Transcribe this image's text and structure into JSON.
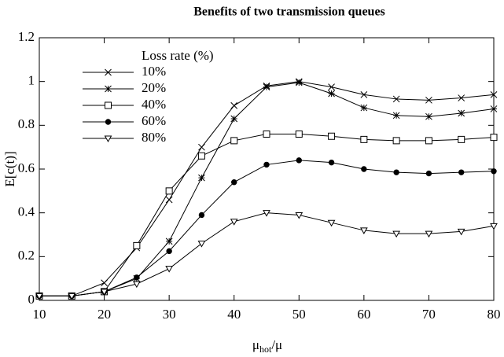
{
  "chart_data": {
    "type": "line",
    "title": "Benefits of two transmission queues",
    "y_label": "E[c(t)]",
    "x_label": {
      "base": "μ",
      "sub": "hot",
      "rest": "/μ"
    },
    "legend_title": "Loss rate (%)",
    "legend": "upper left",
    "x": [
      10,
      15,
      20,
      25,
      30,
      35,
      40,
      45,
      50,
      55,
      60,
      65,
      70,
      75,
      80
    ],
    "series": [
      {
        "name": "10%",
        "color": "#000000",
        "marker": "x",
        "values": [
          0.02,
          0.02,
          0.08,
          0.24,
          0.46,
          0.7,
          0.89,
          0.98,
          1.0,
          0.975,
          0.94,
          0.92,
          0.915,
          0.925,
          0.94
        ]
      },
      {
        "name": "20%",
        "color": "#000000",
        "marker": "star",
        "values": [
          0.02,
          0.02,
          0.04,
          0.1,
          0.27,
          0.56,
          0.83,
          0.975,
          0.995,
          0.945,
          0.88,
          0.845,
          0.84,
          0.855,
          0.875
        ]
      },
      {
        "name": "40%",
        "color": "#000000",
        "marker": "square",
        "values": [
          0.02,
          0.02,
          0.04,
          0.25,
          0.5,
          0.66,
          0.73,
          0.76,
          0.76,
          0.75,
          0.735,
          0.73,
          0.73,
          0.735,
          0.745
        ]
      },
      {
        "name": "60%",
        "color": "#000000",
        "marker": "circle",
        "values": [
          0.02,
          0.02,
          0.04,
          0.105,
          0.225,
          0.39,
          0.54,
          0.62,
          0.64,
          0.63,
          0.6,
          0.585,
          0.58,
          0.585,
          0.59
        ]
      },
      {
        "name": "80%",
        "color": "#000000",
        "marker": "triangle-down",
        "values": [
          0.02,
          0.02,
          0.04,
          0.075,
          0.145,
          0.26,
          0.36,
          0.4,
          0.39,
          0.355,
          0.32,
          0.305,
          0.305,
          0.315,
          0.34
        ]
      }
    ],
    "xlim": [
      10,
      80
    ],
    "xticks": [
      10,
      20,
      30,
      40,
      50,
      60,
      70,
      80
    ],
    "ylim": [
      0,
      1.2
    ],
    "yticks": [
      0,
      0.2,
      0.4,
      0.6,
      0.8,
      1,
      1.2
    ]
  }
}
